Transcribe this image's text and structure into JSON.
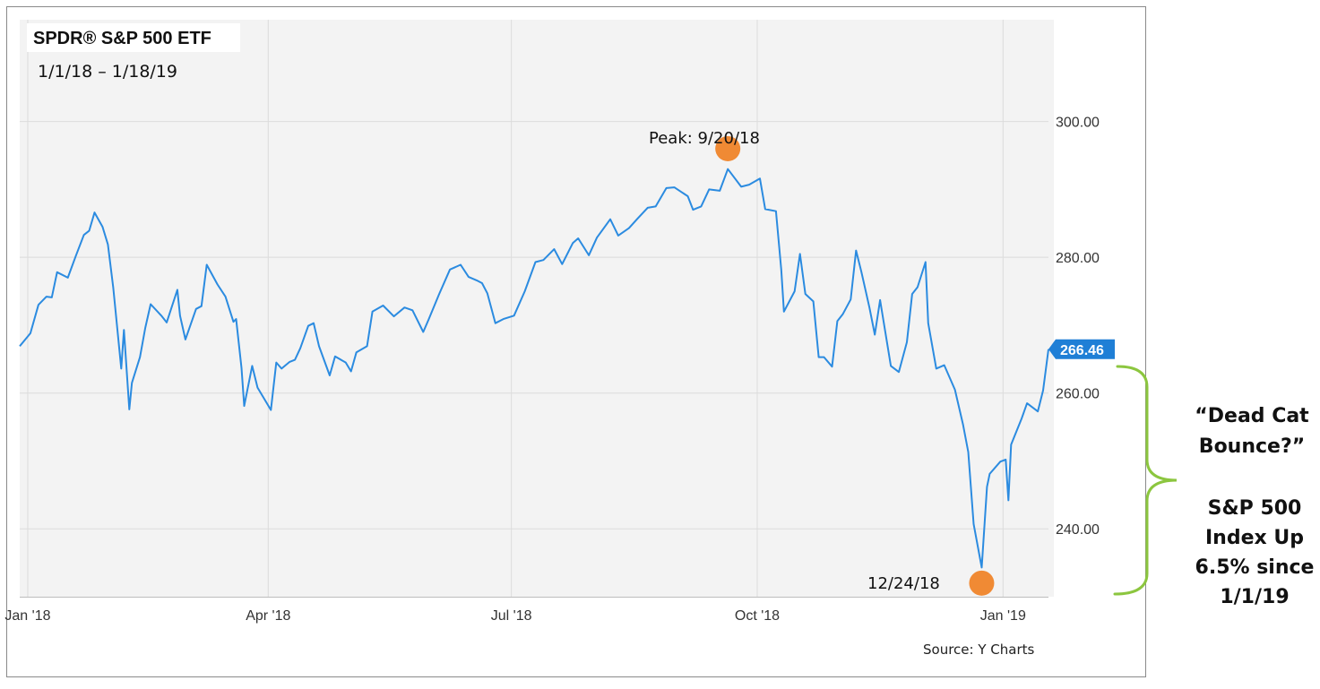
{
  "chart_data": {
    "type": "line",
    "title": "SPDR® S&P 500 ETF",
    "subtitle": "1/1/18 – 1/18/19",
    "xlabel": "",
    "ylabel": "",
    "ylim": [
      230,
      315
    ],
    "yticks": [
      240,
      260,
      280,
      300
    ],
    "ytick_labels": [
      "240.00",
      "260.00",
      "280.00",
      "300.00"
    ],
    "x_start": "2017-12-29",
    "x_end": "2019-01-18",
    "xticks": [
      {
        "date": "2018-01-01",
        "label": "Jan '18"
      },
      {
        "date": "2018-04-01",
        "label": "Apr '18"
      },
      {
        "date": "2018-07-01",
        "label": "Jul '18"
      },
      {
        "date": "2018-10-01",
        "label": "Oct '18"
      },
      {
        "date": "2019-01-01",
        "label": "Jan '19"
      }
    ],
    "grid": true,
    "line_color": "#2b8be0",
    "series": [
      {
        "x": [
          "2017-12-29",
          "2018-01-02",
          "2018-01-05",
          "2018-01-08",
          "2018-01-10",
          "2018-01-12",
          "2018-01-16",
          "2018-01-19",
          "2018-01-22",
          "2018-01-24",
          "2018-01-26",
          "2018-01-29",
          "2018-01-31",
          "2018-02-02",
          "2018-02-05",
          "2018-02-06",
          "2018-02-08",
          "2018-02-09",
          "2018-02-12",
          "2018-02-14",
          "2018-02-16",
          "2018-02-20",
          "2018-02-22",
          "2018-02-26",
          "2018-02-27",
          "2018-03-01",
          "2018-03-05",
          "2018-03-07",
          "2018-03-09",
          "2018-03-13",
          "2018-03-16",
          "2018-03-19",
          "2018-03-20",
          "2018-03-22",
          "2018-03-23",
          "2018-03-26",
          "2018-03-28",
          "2018-04-02",
          "2018-04-04",
          "2018-04-06",
          "2018-04-09",
          "2018-04-11",
          "2018-04-13",
          "2018-04-16",
          "2018-04-18",
          "2018-04-20",
          "2018-04-24",
          "2018-04-26",
          "2018-04-30",
          "2018-05-02",
          "2018-05-04",
          "2018-05-08",
          "2018-05-10",
          "2018-05-14",
          "2018-05-18",
          "2018-05-22",
          "2018-05-25",
          "2018-05-29",
          "2018-05-31",
          "2018-06-04",
          "2018-06-08",
          "2018-06-12",
          "2018-06-15",
          "2018-06-18",
          "2018-06-20",
          "2018-06-22",
          "2018-06-25",
          "2018-06-28",
          "2018-07-02",
          "2018-07-06",
          "2018-07-10",
          "2018-07-13",
          "2018-07-17",
          "2018-07-20",
          "2018-07-24",
          "2018-07-26",
          "2018-07-30",
          "2018-08-02",
          "2018-08-07",
          "2018-08-10",
          "2018-08-14",
          "2018-08-17",
          "2018-08-21",
          "2018-08-24",
          "2018-08-28",
          "2018-08-31",
          "2018-09-05",
          "2018-09-07",
          "2018-09-10",
          "2018-09-13",
          "2018-09-17",
          "2018-09-20",
          "2018-09-25",
          "2018-09-28",
          "2018-10-02",
          "2018-10-04",
          "2018-10-08",
          "2018-10-10",
          "2018-10-11",
          "2018-10-15",
          "2018-10-17",
          "2018-10-19",
          "2018-10-22",
          "2018-10-24",
          "2018-10-26",
          "2018-10-29",
          "2018-10-31",
          "2018-11-02",
          "2018-11-05",
          "2018-11-07",
          "2018-11-09",
          "2018-11-12",
          "2018-11-14",
          "2018-11-16",
          "2018-11-20",
          "2018-11-23",
          "2018-11-26",
          "2018-11-28",
          "2018-11-30",
          "2018-12-03",
          "2018-12-04",
          "2018-12-07",
          "2018-12-10",
          "2018-12-14",
          "2018-12-17",
          "2018-12-19",
          "2018-12-21",
          "2018-12-24",
          "2018-12-26",
          "2018-12-27",
          "2018-12-31",
          "2019-01-02",
          "2019-01-03",
          "2019-01-04",
          "2019-01-08",
          "2019-01-10",
          "2019-01-14",
          "2019-01-16",
          "2019-01-18"
        ],
        "values": [
          266.9,
          268.8,
          273.0,
          274.2,
          274.1,
          277.8,
          277.0,
          280.2,
          283.3,
          283.9,
          286.6,
          284.5,
          281.9,
          275.5,
          263.6,
          269.3,
          257.6,
          261.5,
          265.3,
          269.6,
          273.1,
          271.4,
          270.4,
          275.2,
          271.4,
          267.9,
          272.4,
          272.8,
          278.9,
          276.0,
          274.2,
          270.5,
          270.9,
          263.7,
          258.1,
          264.0,
          260.8,
          257.5,
          264.5,
          263.6,
          264.6,
          264.9,
          266.6,
          269.9,
          270.3,
          266.9,
          262.6,
          265.4,
          264.5,
          263.2,
          266.0,
          266.9,
          272.0,
          272.9,
          271.3,
          272.6,
          272.2,
          269.0,
          270.8,
          274.6,
          278.2,
          278.9,
          277.1,
          276.6,
          276.2,
          274.7,
          270.3,
          270.9,
          271.4,
          275.0,
          279.3,
          279.6,
          281.2,
          279.0,
          282.1,
          282.8,
          280.3,
          282.9,
          285.6,
          283.2,
          284.3,
          285.6,
          287.3,
          287.5,
          290.2,
          290.3,
          289.0,
          287.0,
          287.5,
          290.0,
          289.8,
          293.0,
          290.4,
          290.7,
          291.6,
          287.1,
          286.8,
          278.2,
          272.0,
          275.0,
          280.5,
          274.6,
          273.5,
          265.3,
          265.3,
          263.9,
          270.6,
          271.6,
          273.8,
          281.0,
          277.8,
          272.6,
          268.6,
          273.7,
          264.0,
          263.1,
          267.5,
          274.6,
          275.6,
          279.3,
          270.3,
          263.6,
          264.1,
          260.5,
          255.4,
          251.3,
          240.7,
          234.3,
          246.2,
          248.1,
          249.9,
          250.2,
          244.2,
          252.4,
          256.3,
          258.5,
          257.3,
          260.4,
          266.46
        ]
      }
    ],
    "last_value_label": "266.46",
    "annotations": {
      "peak_label": "Peak: 9/20/18",
      "peak_date": "2018-09-20",
      "peak_marker_value": 296,
      "trough_label": "12/24/18",
      "trough_date": "2018-12-24",
      "trough_marker_value": 232,
      "marker_color": "#f08a34"
    }
  },
  "side_note": {
    "bracket_color": "#8cc63f",
    "line1": "“Dead Cat",
    "line2": "Bounce?”",
    "line3": "S&P 500",
    "line4": "Index Up",
    "line5": "6.5% since",
    "line6": "1/1/19"
  },
  "source": "Source: Y Charts"
}
